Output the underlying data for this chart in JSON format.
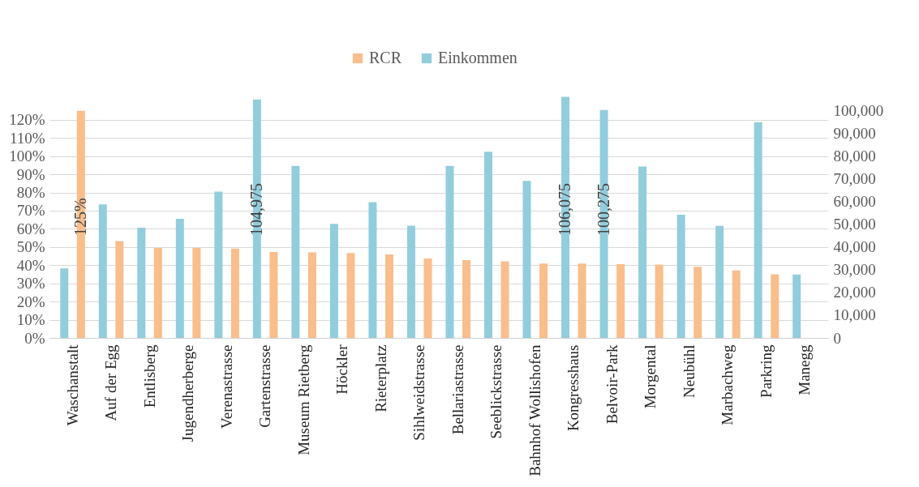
{
  "chart_data": {
    "type": "bar",
    "categories": [
      "Waschanstalt",
      "Auf der Egg",
      "Entlisberg",
      "Jugendherberge",
      "Verenastrasse",
      "Gartenstrasse",
      "Museum Rietberg",
      "Höckler",
      "Rieterplatz",
      "Sihlweidstrasse",
      "Bellariastrasse",
      "Seeblickstrasse",
      "Bahnhof Wollishofen",
      "Kongresshaus",
      "Belvoir-Park",
      "Morgental",
      "Neubühl",
      "Marbachweg",
      "Parkring",
      "Manegg"
    ],
    "series": [
      {
        "name": "RCR",
        "color": "#f9be8c",
        "values": [
          125,
          53.3,
          49.5,
          49.5,
          49.1,
          47.3,
          47.0,
          46.7,
          45.9,
          43.7,
          42.8,
          42.1,
          40.9,
          40.9,
          40.6,
          40.3,
          39.1,
          37.1,
          35.0,
          null
        ],
        "value_labels": [
          "125%",
          null,
          null,
          null,
          null,
          null,
          null,
          null,
          null,
          null,
          null,
          null,
          null,
          null,
          null,
          null,
          null,
          null,
          null,
          null
        ]
      },
      {
        "name": "Einkommen",
        "color": "#92cddc",
        "axis": "y2",
        "values": [
          30600,
          58800,
          48500,
          52400,
          64400,
          104975,
          75700,
          50200,
          59700,
          49400,
          75700,
          81900,
          69100,
          106075,
          100275,
          75400,
          54200,
          49300,
          95000,
          27900
        ],
        "value_labels": [
          null,
          null,
          null,
          null,
          null,
          "104,975",
          null,
          null,
          null,
          null,
          null,
          null,
          null,
          "106,075",
          "100,275",
          null,
          null,
          null,
          null,
          null
        ]
      }
    ],
    "ylim": [
      0,
      133.75
    ],
    "yticks": [
      {
        "value": 0,
        "label": "0%"
      },
      {
        "value": 10,
        "label": "10%"
      },
      {
        "value": 20,
        "label": "20%"
      },
      {
        "value": 30,
        "label": "30%"
      },
      {
        "value": 40,
        "label": "40%"
      },
      {
        "value": 50,
        "label": "50%"
      },
      {
        "value": 60,
        "label": "60%"
      },
      {
        "value": 70,
        "label": "70%"
      },
      {
        "value": 80,
        "label": "80%"
      },
      {
        "value": 90,
        "label": "90%"
      },
      {
        "value": 100,
        "label": "100%"
      },
      {
        "value": 110,
        "label": "110%"
      },
      {
        "value": 120,
        "label": "120%"
      }
    ],
    "y2lim": [
      0,
      107000
    ],
    "y2ticks": [
      0,
      {
        "value": 10000,
        "label": "10,000"
      },
      {
        "value": 20000,
        "label": "20,000"
      },
      {
        "value": 30000,
        "label": "30,000"
      },
      {
        "value": 40000,
        "label": "40,000"
      },
      {
        "value": 50000,
        "label": "50,000"
      },
      {
        "value": 60000,
        "label": "60,000"
      },
      {
        "value": 70000,
        "label": "70,000"
      },
      {
        "value": 80000,
        "label": "80,000"
      },
      {
        "value": 90000,
        "label": "90,000"
      },
      {
        "value": 100000,
        "label": "100,000"
      }
    ],
    "grid": "y",
    "legend": "top"
  }
}
